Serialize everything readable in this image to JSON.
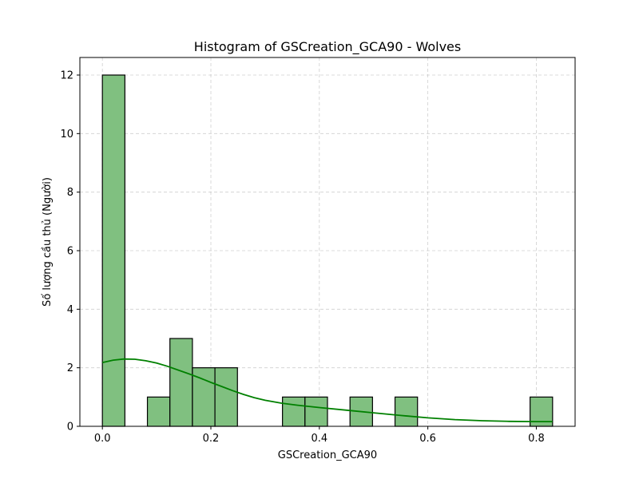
{
  "chart_data": {
    "type": "bar",
    "title": "Histogram of GSCreation_GCA90 - Wolves",
    "xlabel": "GSCreation_GCA90",
    "ylabel": "Số lượng cầu thủ (Người)",
    "xlim": [
      -0.0415,
      0.8715
    ],
    "ylim": [
      0,
      12.6
    ],
    "xticks": [
      0.0,
      0.2,
      0.4,
      0.6,
      0.8
    ],
    "xtick_labels": [
      "0.0",
      "0.2",
      "0.4",
      "0.6",
      "0.8"
    ],
    "yticks": [
      0,
      2,
      4,
      6,
      8,
      10,
      12
    ],
    "ytick_labels": [
      "0",
      "2",
      "4",
      "6",
      "8",
      "10",
      "12"
    ],
    "bins": [
      {
        "x0": 0.0,
        "x1": 0.0415,
        "count": 12
      },
      {
        "x0": 0.0415,
        "x1": 0.083,
        "count": 0
      },
      {
        "x0": 0.083,
        "x1": 0.1245,
        "count": 1
      },
      {
        "x0": 0.1245,
        "x1": 0.166,
        "count": 3
      },
      {
        "x0": 0.166,
        "x1": 0.2075,
        "count": 2
      },
      {
        "x0": 0.2075,
        "x1": 0.249,
        "count": 2
      },
      {
        "x0": 0.249,
        "x1": 0.2905,
        "count": 0
      },
      {
        "x0": 0.2905,
        "x1": 0.332,
        "count": 0
      },
      {
        "x0": 0.332,
        "x1": 0.3735,
        "count": 1
      },
      {
        "x0": 0.3735,
        "x1": 0.415,
        "count": 1
      },
      {
        "x0": 0.415,
        "x1": 0.4565,
        "count": 0
      },
      {
        "x0": 0.4565,
        "x1": 0.498,
        "count": 1
      },
      {
        "x0": 0.498,
        "x1": 0.5395,
        "count": 0
      },
      {
        "x0": 0.5395,
        "x1": 0.581,
        "count": 1
      },
      {
        "x0": 0.581,
        "x1": 0.6225,
        "count": 0
      },
      {
        "x0": 0.6225,
        "x1": 0.664,
        "count": 0
      },
      {
        "x0": 0.664,
        "x1": 0.7055,
        "count": 0
      },
      {
        "x0": 0.7055,
        "x1": 0.747,
        "count": 0
      },
      {
        "x0": 0.747,
        "x1": 0.7885,
        "count": 0
      },
      {
        "x0": 0.7885,
        "x1": 0.83,
        "count": 1
      }
    ],
    "kde": {
      "x": [
        0.0,
        0.02,
        0.04,
        0.06,
        0.08,
        0.1,
        0.12,
        0.14,
        0.16,
        0.18,
        0.2,
        0.22,
        0.24,
        0.26,
        0.28,
        0.3,
        0.33,
        0.36,
        0.4,
        0.45,
        0.5,
        0.55,
        0.6,
        0.65,
        0.7,
        0.75,
        0.8,
        0.83
      ],
      "y": [
        2.18,
        2.26,
        2.3,
        2.29,
        2.24,
        2.16,
        2.05,
        1.92,
        1.79,
        1.65,
        1.5,
        1.36,
        1.22,
        1.09,
        0.98,
        0.89,
        0.79,
        0.72,
        0.64,
        0.55,
        0.46,
        0.37,
        0.29,
        0.23,
        0.19,
        0.17,
        0.16,
        0.16
      ]
    },
    "grid": true,
    "colors": {
      "bar_fill": "#80c080",
      "bar_edge": "#000000",
      "kde": "#008000"
    }
  }
}
